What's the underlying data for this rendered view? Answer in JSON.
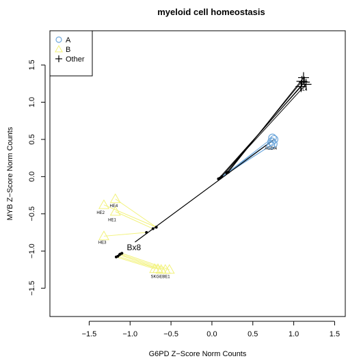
{
  "chart_data": {
    "type": "scatter",
    "title": "myeloid cell homeostasis",
    "xlabel": "G6PD Z−Score Norm Counts",
    "ylabel": "MYB Z−Score Norm Counts",
    "xlim": [
      -1.98,
      1.63
    ],
    "ylim": [
      -1.88,
      1.96
    ],
    "xticks": [
      -1.5,
      -1.0,
      -0.5,
      0.0,
      0.5,
      1.0,
      1.5
    ],
    "yticks": [
      -1.5,
      -1.0,
      -0.5,
      0.0,
      0.5,
      1.0,
      1.5
    ],
    "xtick_labels": [
      "−1.5",
      "−1.0",
      "−0.5",
      "0.0",
      "0.5",
      "1.0",
      "1.5"
    ],
    "ytick_labels": [
      "−1.5",
      "−1.0",
      "−0.5",
      "0.0",
      "0.5",
      "1.0",
      "1.5"
    ],
    "grid": false,
    "legend": {
      "position": "top-left",
      "entries": [
        {
          "label": "A",
          "symbol": "circle",
          "color": "#6fa8dc"
        },
        {
          "label": "B",
          "symbol": "triangle",
          "color": "#f2f27a"
        },
        {
          "label": "Other",
          "symbol": "plus",
          "color": "#000000"
        }
      ]
    },
    "colors": {
      "A": "#6fa8dc",
      "B": "#f2f27a",
      "Other": "#000000",
      "link": "#000000"
    },
    "series": [
      {
        "name": "A",
        "symbol": "circle",
        "points": [
          {
            "x": 0.74,
            "y": 0.52
          },
          {
            "x": 0.76,
            "y": 0.5
          },
          {
            "x": 0.73,
            "y": 0.47
          },
          {
            "x": 0.75,
            "y": 0.44
          },
          {
            "x": 0.72,
            "y": 0.42
          }
        ],
        "anchors": [
          {
            "x": 0.2,
            "y": 0.06
          },
          {
            "x": 0.18,
            "y": 0.05
          },
          {
            "x": 0.12,
            "y": 0.0
          },
          {
            "x": 0.1,
            "y": -0.02
          },
          {
            "x": 0.08,
            "y": -0.03
          }
        ]
      },
      {
        "name": "B",
        "symbol": "triangle",
        "points": [
          {
            "x": -1.18,
            "y": -0.3
          },
          {
            "x": -1.32,
            "y": -0.38
          },
          {
            "x": -1.18,
            "y": -0.47
          },
          {
            "x": -1.32,
            "y": -0.8
          },
          {
            "x": -0.7,
            "y": -1.24
          },
          {
            "x": -0.66,
            "y": -1.24
          },
          {
            "x": -0.62,
            "y": -1.25
          },
          {
            "x": -0.57,
            "y": -1.25
          },
          {
            "x": -0.52,
            "y": -1.25
          }
        ],
        "anchors": [
          {
            "x": -0.68,
            "y": -0.68
          },
          {
            "x": -0.68,
            "y": -0.68
          },
          {
            "x": -0.72,
            "y": -0.7
          },
          {
            "x": -0.8,
            "y": -0.75
          },
          {
            "x": -1.17,
            "y": -1.08
          },
          {
            "x": -1.15,
            "y": -1.07
          },
          {
            "x": -1.13,
            "y": -1.05
          },
          {
            "x": -1.12,
            "y": -1.04
          },
          {
            "x": -1.1,
            "y": -1.03
          }
        ]
      },
      {
        "name": "Other",
        "symbol": "plus",
        "points": [
          {
            "x": 1.12,
            "y": 1.33
          },
          {
            "x": 1.1,
            "y": 1.28
          },
          {
            "x": 1.13,
            "y": 1.27
          },
          {
            "x": 1.15,
            "y": 1.24
          },
          {
            "x": 1.09,
            "y": 1.21
          }
        ],
        "anchors": [
          {
            "x": 0.2,
            "y": 0.06
          },
          {
            "x": 0.18,
            "y": 0.05
          },
          {
            "x": 0.12,
            "y": 0.0
          },
          {
            "x": 0.1,
            "y": -0.02
          },
          {
            "x": 0.08,
            "y": -0.03
          }
        ]
      }
    ],
    "trend_line": {
      "x": [
        -0.94,
        0.76
      ],
      "y": [
        -0.88,
        0.5
      ]
    },
    "labels": [
      {
        "text": "HE4",
        "x": -1.2,
        "y": -0.41
      },
      {
        "text": "HE2",
        "x": -1.36,
        "y": -0.5
      },
      {
        "text": "HE1",
        "x": -1.22,
        "y": -0.6
      },
      {
        "text": "HE3",
        "x": -1.34,
        "y": -0.9
      },
      {
        "text": "SKGEBE1",
        "x": -0.63,
        "y": -1.36
      },
      {
        "text": "AGDI4",
        "x": 0.72,
        "y": 0.36
      },
      {
        "text": "BL4",
        "x": 1.12,
        "y": 1.15
      }
    ],
    "big_labels": [
      {
        "text": "Bx8",
        "x": -1.04,
        "y": -0.99
      }
    ]
  }
}
